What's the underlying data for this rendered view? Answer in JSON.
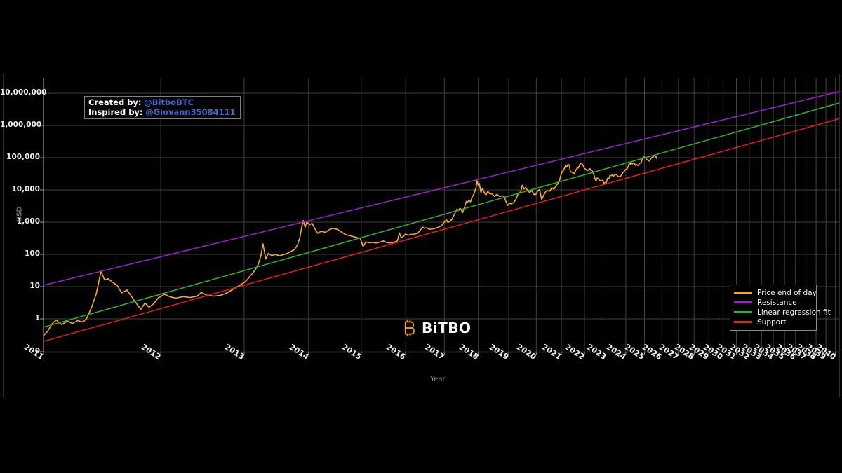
{
  "annotation": {
    "created_label": "Created by:",
    "created_handle": "@BitboBTC",
    "inspired_label": "Inspired by:",
    "inspired_handle": "@Giovann35084111"
  },
  "logo": {
    "text": "BiTBO",
    "symbol_name": "bitcoin-symbol"
  },
  "colors": {
    "background": "#000000",
    "grid": "#414141",
    "spine": "#999999",
    "tick_label": "#ededed",
    "muted_label": "#9a9a9a",
    "link_blue": "#4466cc",
    "logo_orange": "#f2a209",
    "price": "#f7a831",
    "resistance": "#9c1fd0",
    "regression": "#2cb32c",
    "support": "#e51d1d"
  },
  "chart_data": {
    "type": "line",
    "xlabel": "Year",
    "ylabel": "USD",
    "x_scale": "log-time-since-genesis",
    "y_scale": "log",
    "x_ticks": [
      2011,
      2012,
      2013,
      2014,
      2015,
      2016,
      2017,
      2018,
      2019,
      2020,
      2021,
      2022,
      2023,
      2024,
      2025,
      2026,
      2027,
      2028,
      2029,
      2030,
      2031,
      2032,
      2033,
      2034,
      2035,
      2036,
      2037,
      2038,
      2039,
      2040
    ],
    "y_ticks": [
      "0",
      "1",
      "10",
      "100",
      "1,000",
      "10,000",
      "100,000",
      "1,000,000",
      "10,000,000"
    ],
    "y_tick_values": [
      0,
      1,
      10,
      100,
      1000,
      10000,
      100000,
      1000000,
      10000000
    ],
    "legend_position": "lower-right",
    "grid": true,
    "series": [
      {
        "key": "price",
        "name": "Price end of day",
        "color": "#f7a831",
        "points": [
          [
            2011.0,
            0.3
          ],
          [
            2011.03,
            0.42
          ],
          [
            2011.06,
            0.7
          ],
          [
            2011.09,
            0.92
          ],
          [
            2011.13,
            0.66
          ],
          [
            2011.17,
            0.85
          ],
          [
            2011.21,
            0.72
          ],
          [
            2011.25,
            0.88
          ],
          [
            2011.29,
            0.8
          ],
          [
            2011.32,
            1.0
          ],
          [
            2011.36,
            2.2
          ],
          [
            2011.4,
            6.0
          ],
          [
            2011.44,
            30.0
          ],
          [
            2011.47,
            16.0
          ],
          [
            2011.5,
            17.5
          ],
          [
            2011.54,
            13.5
          ],
          [
            2011.58,
            11.0
          ],
          [
            2011.62,
            6.4
          ],
          [
            2011.67,
            7.8
          ],
          [
            2011.71,
            5.0
          ],
          [
            2011.75,
            3.2
          ],
          [
            2011.8,
            2.0
          ],
          [
            2011.84,
            3.1
          ],
          [
            2011.88,
            2.3
          ],
          [
            2011.93,
            3.0
          ],
          [
            2011.97,
            4.4
          ],
          [
            2012.04,
            5.8
          ],
          [
            2012.1,
            4.8
          ],
          [
            2012.16,
            4.4
          ],
          [
            2012.24,
            4.9
          ],
          [
            2012.32,
            4.6
          ],
          [
            2012.4,
            5.0
          ],
          [
            2012.45,
            6.6
          ],
          [
            2012.52,
            5.4
          ],
          [
            2012.6,
            5.1
          ],
          [
            2012.68,
            5.3
          ],
          [
            2012.76,
            6.2
          ],
          [
            2012.84,
            8.0
          ],
          [
            2012.92,
            10.2
          ],
          [
            2013.0,
            13.4
          ],
          [
            2013.04,
            16
          ],
          [
            2013.08,
            21
          ],
          [
            2013.12,
            26
          ],
          [
            2013.16,
            34
          ],
          [
            2013.2,
            48
          ],
          [
            2013.24,
            92
          ],
          [
            2013.27,
            213
          ],
          [
            2013.31,
            72
          ],
          [
            2013.35,
            108
          ],
          [
            2013.4,
            91
          ],
          [
            2013.46,
            100
          ],
          [
            2013.52,
            89
          ],
          [
            2013.58,
            98
          ],
          [
            2013.64,
            106
          ],
          [
            2013.7,
            122
          ],
          [
            2013.76,
            140
          ],
          [
            2013.81,
            195
          ],
          [
            2013.85,
            330
          ],
          [
            2013.88,
            660
          ],
          [
            2013.91,
            1120
          ],
          [
            2013.94,
            700
          ],
          [
            2013.97,
            1010
          ],
          [
            2014.02,
            830
          ],
          [
            2014.06,
            920
          ],
          [
            2014.11,
            630
          ],
          [
            2014.16,
            450
          ],
          [
            2014.22,
            525
          ],
          [
            2014.3,
            480
          ],
          [
            2014.38,
            595
          ],
          [
            2014.44,
            640
          ],
          [
            2014.52,
            600
          ],
          [
            2014.6,
            500
          ],
          [
            2014.68,
            410
          ],
          [
            2014.76,
            385
          ],
          [
            2014.84,
            355
          ],
          [
            2014.92,
            330
          ],
          [
            2014.98,
            315
          ],
          [
            2015.04,
            175
          ],
          [
            2015.1,
            245
          ],
          [
            2015.16,
            230
          ],
          [
            2015.24,
            237
          ],
          [
            2015.32,
            225
          ],
          [
            2015.4,
            240
          ],
          [
            2015.48,
            262
          ],
          [
            2015.56,
            230
          ],
          [
            2015.64,
            228
          ],
          [
            2015.72,
            236
          ],
          [
            2015.8,
            262
          ],
          [
            2015.85,
            460
          ],
          [
            2015.89,
            330
          ],
          [
            2015.94,
            358
          ],
          [
            2016.0,
            432
          ],
          [
            2016.06,
            390
          ],
          [
            2016.12,
            415
          ],
          [
            2016.2,
            420
          ],
          [
            2016.3,
            455
          ],
          [
            2016.42,
            705
          ],
          [
            2016.46,
            650
          ],
          [
            2016.52,
            665
          ],
          [
            2016.6,
            600
          ],
          [
            2016.68,
            615
          ],
          [
            2016.76,
            640
          ],
          [
            2016.84,
            700
          ],
          [
            2016.92,
            770
          ],
          [
            2016.98,
            950
          ],
          [
            2017.02,
            1050
          ],
          [
            2017.06,
            1180
          ],
          [
            2017.1,
            980
          ],
          [
            2017.16,
            1080
          ],
          [
            2017.22,
            1250
          ],
          [
            2017.3,
            1900
          ],
          [
            2017.36,
            2550
          ],
          [
            2017.4,
            2300
          ],
          [
            2017.44,
            2680
          ],
          [
            2017.48,
            2480
          ],
          [
            2017.52,
            1960
          ],
          [
            2017.58,
            2900
          ],
          [
            2017.63,
            4400
          ],
          [
            2017.67,
            4150
          ],
          [
            2017.72,
            4900
          ],
          [
            2017.76,
            4250
          ],
          [
            2017.81,
            6100
          ],
          [
            2017.86,
            7350
          ],
          [
            2017.9,
            9900
          ],
          [
            2017.93,
            11500
          ],
          [
            2017.96,
            19200
          ],
          [
            2017.99,
            14200
          ],
          [
            2018.03,
            16100
          ],
          [
            2018.08,
            8300
          ],
          [
            2018.13,
            11300
          ],
          [
            2018.19,
            8100
          ],
          [
            2018.24,
            7000
          ],
          [
            2018.3,
            9100
          ],
          [
            2018.36,
            7600
          ],
          [
            2018.44,
            7500
          ],
          [
            2018.52,
            6300
          ],
          [
            2018.6,
            7300
          ],
          [
            2018.68,
            6300
          ],
          [
            2018.76,
            6500
          ],
          [
            2018.84,
            6400
          ],
          [
            2018.9,
            4450
          ],
          [
            2018.96,
            3300
          ],
          [
            2019.02,
            3800
          ],
          [
            2019.1,
            3700
          ],
          [
            2019.18,
            4150
          ],
          [
            2019.26,
            5300
          ],
          [
            2019.34,
            7900
          ],
          [
            2019.42,
            8600
          ],
          [
            2019.48,
            14000
          ],
          [
            2019.54,
            10700
          ],
          [
            2019.6,
            11900
          ],
          [
            2019.67,
            9800
          ],
          [
            2019.75,
            8300
          ],
          [
            2019.83,
            9500
          ],
          [
            2019.91,
            7300
          ],
          [
            2019.98,
            7200
          ],
          [
            2020.06,
            9400
          ],
          [
            2020.13,
            10300
          ],
          [
            2020.21,
            5100
          ],
          [
            2020.29,
            6900
          ],
          [
            2020.37,
            8900
          ],
          [
            2020.45,
            9500
          ],
          [
            2020.53,
            9150
          ],
          [
            2020.61,
            11800
          ],
          [
            2020.69,
            10500
          ],
          [
            2020.77,
            13000
          ],
          [
            2020.85,
            15600
          ],
          [
            2020.92,
            19300
          ],
          [
            2020.98,
            29000
          ],
          [
            2021.04,
            37500
          ],
          [
            2021.09,
            40500
          ],
          [
            2021.13,
            48000
          ],
          [
            2021.17,
            57500
          ],
          [
            2021.22,
            51000
          ],
          [
            2021.28,
            63200
          ],
          [
            2021.33,
            58000
          ],
          [
            2021.38,
            37000
          ],
          [
            2021.44,
            35500
          ],
          [
            2021.5,
            33500
          ],
          [
            2021.55,
            31500
          ],
          [
            2021.61,
            40500
          ],
          [
            2021.67,
            47500
          ],
          [
            2021.73,
            48000
          ],
          [
            2021.79,
            62000
          ],
          [
            2021.85,
            66800
          ],
          [
            2021.89,
            64000
          ],
          [
            2021.94,
            57000
          ],
          [
            2021.99,
            47000
          ],
          [
            2022.06,
            43500
          ],
          [
            2022.12,
            39200
          ],
          [
            2022.18,
            41500
          ],
          [
            2022.24,
            45800
          ],
          [
            2022.3,
            40000
          ],
          [
            2022.36,
            38500
          ],
          [
            2022.43,
            29700
          ],
          [
            2022.49,
            21000
          ],
          [
            2022.53,
            19000
          ],
          [
            2022.59,
            23600
          ],
          [
            2022.65,
            21600
          ],
          [
            2022.71,
            19500
          ],
          [
            2022.79,
            19200
          ],
          [
            2022.85,
            20100
          ],
          [
            2022.9,
            16200
          ],
          [
            2022.96,
            16900
          ],
          [
            2023.02,
            16700
          ],
          [
            2023.08,
            23100
          ],
          [
            2023.14,
            22100
          ],
          [
            2023.2,
            28200
          ],
          [
            2023.26,
            27600
          ],
          [
            2023.32,
            29200
          ],
          [
            2023.38,
            26600
          ],
          [
            2023.45,
            30300
          ],
          [
            2023.53,
            29400
          ],
          [
            2023.61,
            26100
          ],
          [
            2023.69,
            25900
          ],
          [
            2023.77,
            28100
          ],
          [
            2023.85,
            34600
          ],
          [
            2023.92,
            37900
          ],
          [
            2023.98,
            42600
          ],
          [
            2024.04,
            44200
          ],
          [
            2024.1,
            48200
          ],
          [
            2024.16,
            62000
          ],
          [
            2024.2,
            68200
          ],
          [
            2024.24,
            62100
          ],
          [
            2024.28,
            71200
          ],
          [
            2024.34,
            63600
          ],
          [
            2024.4,
            67200
          ],
          [
            2024.46,
            64600
          ],
          [
            2024.52,
            57600
          ],
          [
            2024.58,
            61200
          ],
          [
            2024.64,
            57200
          ],
          [
            2024.7,
            63200
          ],
          [
            2024.76,
            67600
          ],
          [
            2024.82,
            69200
          ],
          [
            2024.88,
            90500
          ],
          [
            2024.93,
            98500
          ],
          [
            2024.98,
            106200
          ],
          [
            2025.03,
            102200
          ],
          [
            2025.08,
            96500
          ],
          [
            2025.14,
            84200
          ],
          [
            2025.2,
            86200
          ],
          [
            2025.26,
            78600
          ],
          [
            2025.32,
            85200
          ],
          [
            2025.38,
            97200
          ],
          [
            2025.44,
            104200
          ],
          [
            2025.5,
            107200
          ],
          [
            2025.56,
            118200
          ],
          [
            2025.61,
            113200
          ],
          [
            2025.65,
            108200
          ],
          [
            2025.68,
            96200
          ]
        ]
      },
      {
        "key": "resistance",
        "name": "Resistance",
        "color": "#9c1fd0",
        "anchors": [
          [
            2011.0,
            11
          ],
          [
            2040.0,
            10500000
          ]
        ]
      },
      {
        "key": "regression",
        "name": "Linear regression fit",
        "color": "#2cb32c",
        "anchors": [
          [
            2011.0,
            0.55
          ],
          [
            2040.0,
            4600000
          ]
        ]
      },
      {
        "key": "support",
        "name": "Support",
        "color": "#e51d1d",
        "anchors": [
          [
            2011.0,
            0.2
          ],
          [
            2040.0,
            1500000
          ]
        ]
      }
    ]
  }
}
